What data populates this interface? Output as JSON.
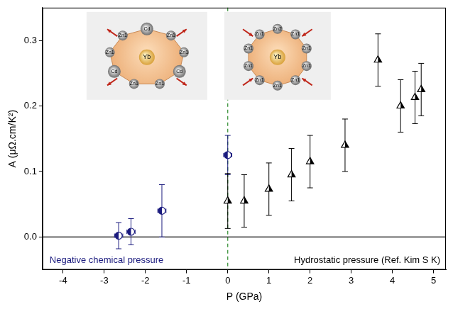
{
  "chart_data": {
    "type": "scatter",
    "x_label": "P (GPa)",
    "y_label": "A (μΩ.cm/K²)",
    "xlim": [
      -4.5,
      5.3
    ],
    "xticks": [
      -4,
      -3,
      -2,
      -1,
      0,
      1,
      2,
      3,
      4,
      5
    ],
    "ylim": [
      -0.05,
      0.35
    ],
    "yticks": [
      {
        "value": 0,
        "label": "0.0"
      },
      {
        "value": 0.1,
        "label": "0.1"
      },
      {
        "value": 0.2,
        "label": "0.2"
      },
      {
        "value": 0.3,
        "label": "0.3"
      }
    ],
    "grid": false,
    "series": [
      {
        "name": "Negative chemical pressure",
        "color": "#1a1a7e",
        "marker": "half_filled_circle",
        "x": [
          -2.65,
          -2.35,
          -1.6,
          0
        ],
        "values": [
          0.002,
          0.008,
          0.04,
          0.125
        ],
        "yerr": [
          0.02,
          0.02,
          0.04,
          0.03
        ],
        "xerr": [
          0.1,
          0.1,
          0.1,
          0.1
        ]
      },
      {
        "name": "Hydrostatic pressure (Ref. Kim S K)",
        "color": "#000000",
        "marker": "half_filled_triangle",
        "x": [
          0,
          0.4,
          1.0,
          1.55,
          2.0,
          2.85,
          3.65,
          4.2,
          4.55,
          4.7
        ],
        "values": [
          0.055,
          0.055,
          0.073,
          0.095,
          0.115,
          0.14,
          0.27,
          0.2,
          0.213,
          0.225
        ],
        "yerr": [
          0.042,
          0.04,
          0.04,
          0.04,
          0.04,
          0.04,
          0.04,
          0.04,
          0.04,
          0.04
        ]
      }
    ],
    "lines": [
      {
        "axis": "y",
        "value": 0,
        "line_style": "solid",
        "color": "#000000"
      },
      {
        "axis": "x",
        "value": 0,
        "line_style": "dashed",
        "color": "#2e8b2e"
      }
    ],
    "annotations": [
      {
        "text": "Negative chemical pressure",
        "color": "#1a1a7e"
      },
      {
        "text": "Hydrostatic pressure (Ref. Kim S K)",
        "color": "#000000"
      }
    ],
    "insets": [
      {
        "center": "Yb",
        "atoms": [
          "Cd",
          "Zn1",
          "Zn1",
          "Cd",
          "Zn1",
          "Zn1",
          "Cd",
          "Zn1",
          "Zn1"
        ]
      },
      {
        "center": "Yb",
        "atoms": [
          "Zn2",
          "Zn1",
          "Zn1",
          "Zn1",
          "Zn1",
          "Zn1",
          "Zn1",
          "Zn1",
          "Zn1",
          "Zn1"
        ]
      }
    ]
  }
}
